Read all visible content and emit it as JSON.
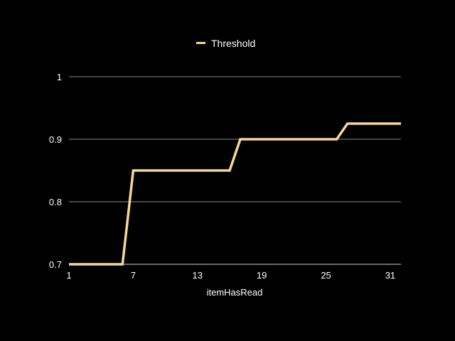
{
  "colors": {
    "background": "#000000",
    "series": "#f5d898",
    "grid": "#8a8a8a",
    "text": "#ffffff"
  },
  "chart_data": {
    "type": "line",
    "xlabel": "itemHasRead",
    "ylabel": "",
    "xlim": [
      1,
      32
    ],
    "ylim": [
      0.7,
      1.0
    ],
    "x_ticks": [
      "1",
      "7",
      "13",
      "19",
      "25",
      "31"
    ],
    "x_tick_values": [
      1,
      7,
      13,
      19,
      25,
      31
    ],
    "y_ticks": [
      "0.7",
      "0.8",
      "0.9",
      "1"
    ],
    "y_tick_values": [
      0.7,
      0.8,
      0.9,
      1.0
    ],
    "grid": "horizontal",
    "legend_position": "top-center",
    "series": [
      {
        "name": "Threshold",
        "x": [
          1,
          2,
          3,
          4,
          5,
          6,
          7,
          8,
          9,
          10,
          11,
          12,
          13,
          14,
          15,
          16,
          17,
          18,
          19,
          20,
          21,
          22,
          23,
          24,
          25,
          26,
          27,
          28,
          29,
          30,
          31,
          32
        ],
        "values": [
          0.7,
          0.7,
          0.7,
          0.7,
          0.7,
          0.7,
          0.85,
          0.85,
          0.85,
          0.85,
          0.85,
          0.85,
          0.85,
          0.85,
          0.85,
          0.85,
          0.9,
          0.9,
          0.9,
          0.9,
          0.9,
          0.9,
          0.9,
          0.9,
          0.9,
          0.9,
          0.925,
          0.925,
          0.925,
          0.925,
          0.925,
          0.925
        ]
      }
    ]
  }
}
